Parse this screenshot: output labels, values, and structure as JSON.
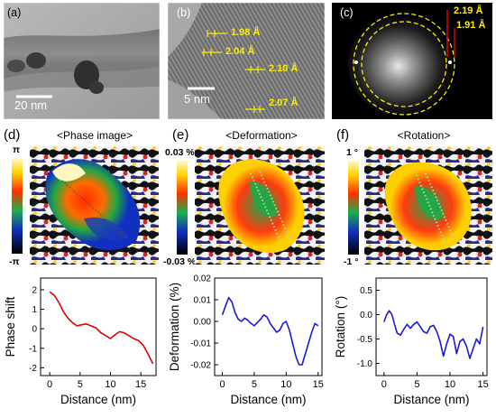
{
  "panels": {
    "a": {
      "label": "(a)",
      "scale_bar": "20 nm"
    },
    "b": {
      "label": "(b)",
      "scale_bar": "5 nm",
      "spacings": [
        "1.98 Å",
        "2.04 Å",
        "2.10 Å",
        "2.07 Å"
      ]
    },
    "c": {
      "label": "(c)",
      "rings": [
        "2.19 Å",
        "1.91 Å"
      ]
    },
    "d": {
      "label": "(d)",
      "title": "<Phase image>",
      "cbar_top": "π",
      "cbar_bottom": "-π"
    },
    "e": {
      "label": "(e)",
      "title": "<Deformation>",
      "cbar_top": "0.03 %",
      "cbar_bottom": "-0.03 %"
    },
    "f": {
      "label": "(f)",
      "title": "<Rotation>",
      "cbar_top": "1 °",
      "cbar_bottom": "-1 °"
    }
  },
  "colors": {
    "annotation_yellow": "#ffee00",
    "line_red": "#e00000",
    "line_blue": "#1a1ad8",
    "ring_label_red": "#e00000"
  },
  "chart_data": [
    {
      "type": "line",
      "xlabel": "Distance (nm)",
      "ylabel": "Phase shift",
      "xlim": [
        -1.5,
        17.5
      ],
      "ylim": [
        -2.4,
        2.6
      ],
      "xticks": [
        0,
        5,
        10,
        15
      ],
      "yticks": [
        -2,
        -1,
        0,
        1,
        2
      ],
      "series": [
        {
          "x": [
            0,
            0.8,
            1.5,
            2.3,
            3,
            3.8,
            4.5,
            5.2,
            6,
            6.8,
            7.6,
            8.4,
            9.2,
            10,
            10.8,
            11.5,
            12.2,
            13,
            13.8,
            14.6,
            15.4,
            16.2,
            17
          ],
          "y": [
            1.9,
            1.7,
            1.35,
            0.85,
            0.55,
            0.3,
            0.15,
            0.2,
            0.25,
            0.15,
            0.05,
            -0.2,
            -0.35,
            -0.5,
            -0.3,
            -0.15,
            -0.2,
            -0.35,
            -0.5,
            -0.6,
            -0.85,
            -1.3,
            -1.8
          ]
        }
      ]
    },
    {
      "type": "line",
      "xlabel": "Distance (nm)",
      "ylabel": "Deformation (%)",
      "xlim": [
        -1.2,
        15.6
      ],
      "ylim": [
        -0.025,
        0.02
      ],
      "xticks": [
        0,
        5,
        10,
        15
      ],
      "yticks": [
        -0.02,
        -0.01,
        0.0,
        0.01,
        0.02
      ],
      "ytick_labels": [
        "-0.02",
        "-0.01",
        "0.00",
        "0.01",
        "0.02"
      ],
      "series": [
        {
          "x": [
            0,
            0.5,
            1,
            1.5,
            2,
            2.5,
            3,
            3.5,
            4,
            4.5,
            5,
            5.5,
            6,
            6.5,
            7,
            7.5,
            8,
            8.5,
            9,
            9.5,
            10,
            10.5,
            11,
            11.5,
            12,
            12.5,
            13,
            13.5,
            14,
            14.5,
            15
          ],
          "y": [
            0.003,
            0.007,
            0.011,
            0.009,
            0.004,
            0.001,
            0.0,
            0.0015,
            0.0005,
            -0.001,
            -0.002,
            -0.0005,
            0.001,
            0.003,
            0.002,
            -0.001,
            -0.003,
            -0.005,
            -0.004,
            -0.001,
            0.0,
            -0.004,
            -0.01,
            -0.016,
            -0.02,
            -0.02,
            -0.015,
            -0.01,
            -0.005,
            -0.001,
            -0.002
          ]
        }
      ]
    },
    {
      "type": "line",
      "xlabel": "Distance (nm)",
      "ylabel": "Rotation (°)",
      "xlim": [
        -1.2,
        15.6
      ],
      "ylim": [
        -1.25,
        0.75
      ],
      "xticks": [
        0,
        5,
        10,
        15
      ],
      "yticks": [
        -1.0,
        -0.5,
        0.0,
        0.5
      ],
      "ytick_labels": [
        "-1.0",
        "-0.5",
        "0.0",
        "0.5"
      ],
      "series": [
        {
          "x": [
            0,
            0.4,
            0.8,
            1.2,
            1.6,
            2,
            2.5,
            3,
            3.5,
            4,
            4.5,
            5,
            5.5,
            6,
            6.5,
            7,
            7.5,
            8,
            8.5,
            9,
            9.5,
            10,
            10.5,
            11,
            11.5,
            12,
            12.5,
            13,
            13.5,
            14,
            14.5,
            15
          ],
          "y": [
            -0.15,
            0.0,
            0.08,
            0.0,
            -0.2,
            -0.38,
            -0.42,
            -0.3,
            -0.2,
            -0.28,
            -0.2,
            -0.15,
            -0.25,
            -0.35,
            -0.38,
            -0.25,
            -0.22,
            -0.35,
            -0.55,
            -0.85,
            -0.6,
            -0.4,
            -0.45,
            -0.8,
            -0.55,
            -0.5,
            -0.65,
            -0.9,
            -0.7,
            -0.5,
            -0.6,
            -0.25
          ]
        }
      ]
    }
  ]
}
